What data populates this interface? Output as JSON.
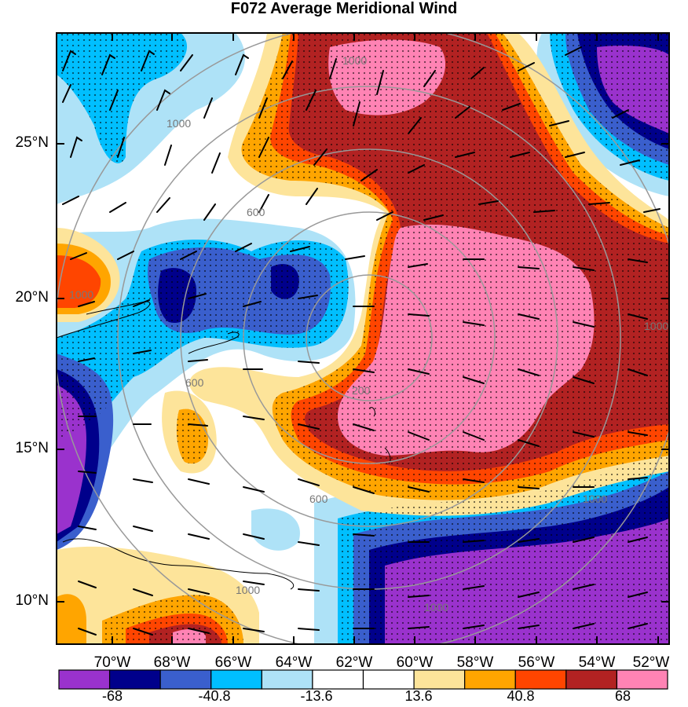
{
  "title": "F072 Average Meridional Wind",
  "latitude_labels": [
    "25°N",
    "20°N",
    "15°N",
    "10°N"
  ],
  "longitude_labels": [
    "70°W",
    "68°W",
    "66°W",
    "64°W",
    "62°W",
    "60°W",
    "58°W",
    "56°W",
    "54°W",
    "52°W"
  ],
  "colorbar": {
    "colors": [
      "#9a32cd",
      "#00008b",
      "#3a5fcd",
      "#00bfff",
      "#aee2f7",
      "#ffffff",
      "#ffffff",
      "#fde49a",
      "#ffa500",
      "#ff4500",
      "#b22222",
      "#ff83b4"
    ],
    "tick_labels": [
      "-68",
      "-40.8",
      "-13.6",
      "13.6",
      "40.8",
      "68"
    ]
  },
  "range_ring_labels": [
    "200",
    "600",
    "600",
    "600",
    "1000",
    "1000",
    "1000",
    "1000",
    "1000",
    "1000",
    "1000"
  ]
}
